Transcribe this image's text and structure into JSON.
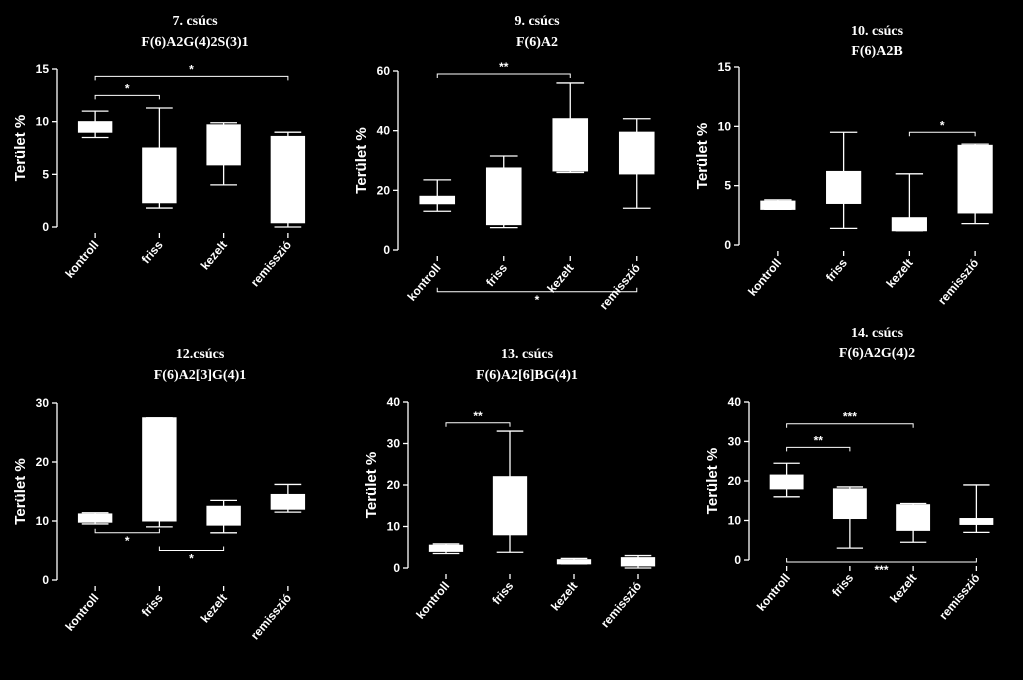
{
  "chart_data": [
    {
      "type": "box",
      "title": [
        "7. csúcs",
        "F(6)A2G(4)2S(3)1"
      ],
      "ylabel": "Terület %",
      "categories": [
        "kontroll",
        "friss",
        "kezelt",
        "remisszió"
      ],
      "ylim": [
        0,
        15
      ],
      "yticks": [
        0,
        5,
        10,
        15
      ],
      "boxes": [
        {
          "min": 8.5,
          "q1": 9.0,
          "median": 9.5,
          "q3": 10.0,
          "max": 11.0
        },
        {
          "min": 1.8,
          "q1": 2.3,
          "median": 4.0,
          "q3": 7.5,
          "max": 11.3
        },
        {
          "min": 4.0,
          "q1": 5.9,
          "median": 8.5,
          "q3": 9.7,
          "max": 9.9
        },
        {
          "min": 0.0,
          "q1": 0.4,
          "median": 6.0,
          "q3": 8.6,
          "max": 9.0
        }
      ],
      "significance": [
        {
          "from": 0,
          "to": 1,
          "label": "*",
          "y": 12.5,
          "side": "top"
        },
        {
          "from": 0,
          "to": 3,
          "label": "*",
          "y": 14.3,
          "side": "top"
        }
      ]
    },
    {
      "type": "box",
      "title": [
        "9. csúcs",
        "F(6)A2"
      ],
      "ylabel": "Terület %",
      "categories": [
        "kontroll",
        "friss",
        "kezelt",
        "remisszió"
      ],
      "ylim": [
        0,
        60
      ],
      "yticks": [
        0,
        20,
        40,
        60
      ],
      "boxes": [
        {
          "min": 13,
          "q1": 15.5,
          "median": 17,
          "q3": 18,
          "max": 23.5
        },
        {
          "min": 7.5,
          "q1": 8.5,
          "median": 12,
          "q3": 27.5,
          "max": 31.5
        },
        {
          "min": 26,
          "q1": 26.5,
          "median": 33,
          "q3": 44,
          "max": 56
        },
        {
          "min": 14,
          "q1": 25.5,
          "median": 30,
          "q3": 39.5,
          "max": 44
        }
      ],
      "significance": [
        {
          "from": 0,
          "to": 2,
          "label": "**",
          "y": 59,
          "side": "top"
        },
        {
          "from": 0,
          "to": 3,
          "label": "*",
          "y": -14,
          "side": "bottom"
        }
      ]
    },
    {
      "type": "box",
      "title": [
        "10. csúcs",
        "F(6)A2B"
      ],
      "ylabel": "Terület %",
      "categories": [
        "kontroll",
        "friss",
        "kezelt",
        "remisszió"
      ],
      "ylim": [
        0,
        15
      ],
      "yticks": [
        0,
        5,
        10,
        15
      ],
      "boxes": [
        {
          "min": 3.0,
          "q1": 3.0,
          "median": 3.3,
          "q3": 3.7,
          "max": 3.8
        },
        {
          "min": 1.4,
          "q1": 3.5,
          "median": 4.5,
          "q3": 6.2,
          "max": 9.5
        },
        {
          "min": 1.2,
          "q1": 1.2,
          "median": 1.8,
          "q3": 2.3,
          "max": 6.0
        },
        {
          "min": 1.8,
          "q1": 2.7,
          "median": 6.0,
          "q3": 8.4,
          "max": 8.5
        }
      ],
      "significance": [
        {
          "from": 2,
          "to": 3,
          "label": "*",
          "y": 9.5,
          "side": "top"
        }
      ]
    },
    {
      "type": "box",
      "title": [
        "12.csúcs",
        "F(6)A2[3]G(4)1"
      ],
      "ylabel": "Terület %",
      "categories": [
        "kontroll",
        "friss",
        "kezelt",
        "remisszió"
      ],
      "ylim": [
        0,
        30
      ],
      "yticks": [
        0,
        10,
        20,
        30
      ],
      "boxes": [
        {
          "min": 9.5,
          "q1": 9.8,
          "median": 10.5,
          "q3": 11.2,
          "max": 11.4
        },
        {
          "min": 9.0,
          "q1": 10.0,
          "median": 12.0,
          "q3": 27.5,
          "max": 27.5
        },
        {
          "min": 8.0,
          "q1": 9.3,
          "median": 11.0,
          "q3": 12.5,
          "max": 13.5
        },
        {
          "min": 11.5,
          "q1": 12.0,
          "median": 13.0,
          "q3": 14.5,
          "max": 16.2
        }
      ],
      "significance": [
        {
          "from": 0,
          "to": 1,
          "label": "*",
          "y": 8.0,
          "side": "bottom"
        },
        {
          "from": 1,
          "to": 2,
          "label": "*",
          "y": 5.0,
          "side": "bottom"
        }
      ]
    },
    {
      "type": "box",
      "title": [
        "13. csúcs",
        "F(6)A2[6]BG(4)1"
      ],
      "ylabel": "Terület %",
      "categories": [
        "kontroll",
        "friss",
        "kezelt",
        "remisszió"
      ],
      "ylim": [
        0,
        40
      ],
      "yticks": [
        0,
        10,
        20,
        30,
        40
      ],
      "boxes": [
        {
          "min": 3.5,
          "q1": 4.0,
          "median": 4.5,
          "q3": 5.5,
          "max": 5.8
        },
        {
          "min": 3.8,
          "q1": 8.0,
          "median": 12.0,
          "q3": 22.0,
          "max": 33.0
        },
        {
          "min": 1.0,
          "q1": 1.0,
          "median": 1.5,
          "q3": 2.0,
          "max": 2.3
        },
        {
          "min": 0.0,
          "q1": 0.5,
          "median": 1.5,
          "q3": 2.5,
          "max": 3.0
        }
      ],
      "significance": [
        {
          "from": 0,
          "to": 1,
          "label": "**",
          "y": 35,
          "side": "top"
        }
      ]
    },
    {
      "type": "box",
      "title": [
        "14. csúcs",
        "F(6)A2G(4)2"
      ],
      "ylabel": "Terület %",
      "categories": [
        "kontroll",
        "friss",
        "kezelt",
        "remisszió"
      ],
      "ylim": [
        0,
        40
      ],
      "yticks": [
        0,
        10,
        20,
        30,
        40
      ],
      "boxes": [
        {
          "min": 16,
          "q1": 18,
          "median": 20,
          "q3": 21.5,
          "max": 24.5
        },
        {
          "min": 3,
          "q1": 10.5,
          "median": 14,
          "q3": 18,
          "max": 18.5
        },
        {
          "min": 4.5,
          "q1": 7.5,
          "median": 10,
          "q3": 14,
          "max": 14.3
        },
        {
          "min": 7,
          "q1": 9,
          "median": 10,
          "q3": 10.5,
          "max": 19
        }
      ],
      "significance": [
        {
          "from": 0,
          "to": 1,
          "label": "**",
          "y": 28.5,
          "side": "top"
        },
        {
          "from": 0,
          "to": 2,
          "label": "***",
          "y": 34.5,
          "side": "top"
        },
        {
          "from": 0,
          "to": 3,
          "label": "***",
          "y": -0.5,
          "side": "bottom"
        }
      ]
    }
  ]
}
